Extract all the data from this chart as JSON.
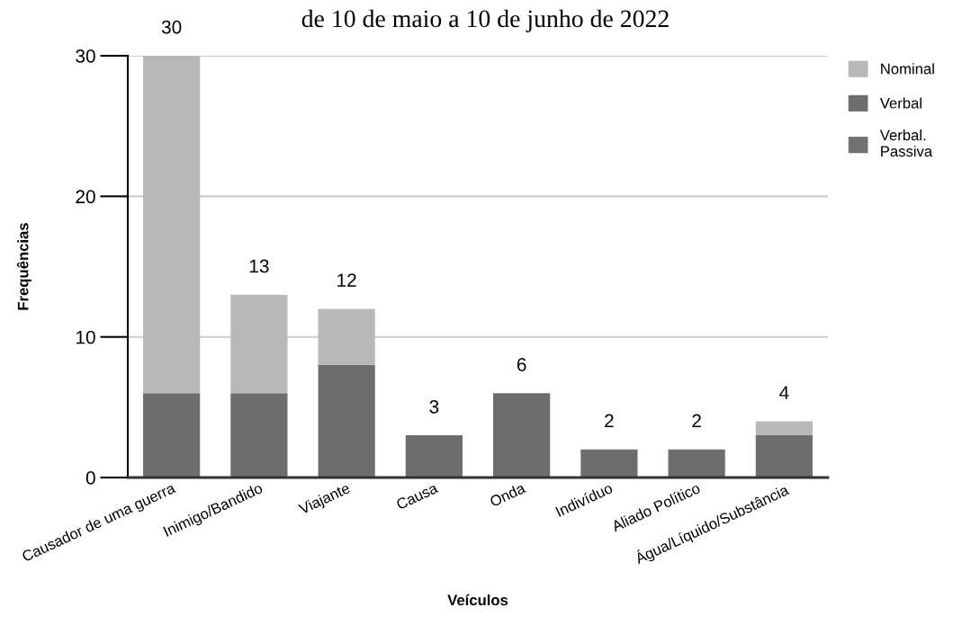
{
  "chart_data": {
    "type": "bar",
    "title": "de 10 de maio a 10 de junho de 2022",
    "xlabel": "Veículos",
    "ylabel": "Frequências",
    "categories": [
      "Causador de uma guerra",
      "Inimigo/Bandido",
      "Viajante",
      "Causa",
      "Onda",
      "Indivíduo",
      "Aliado Político",
      "Água/Líquido/Substância"
    ],
    "series": [
      {
        "name": "Verbal",
        "color": "#6d6d6d",
        "values": [
          6,
          6,
          8,
          3,
          6,
          2,
          2,
          3
        ]
      },
      {
        "name": "Verbal. Passiva",
        "color": "#717171",
        "values": [
          0,
          0,
          0,
          0,
          0,
          0,
          0,
          0
        ]
      },
      {
        "name": "Nominal",
        "color": "#b8b8b8",
        "values": [
          24,
          7,
          4,
          0,
          0,
          0,
          0,
          1
        ]
      }
    ],
    "stacked": true,
    "totals": [
      "30",
      "13",
      "12",
      "3",
      "6",
      "2",
      "2",
      "4"
    ],
    "ylim": [
      0,
      30
    ],
    "yticks": [
      0,
      10,
      20,
      30
    ],
    "grid": "y",
    "legend": "top right"
  }
}
